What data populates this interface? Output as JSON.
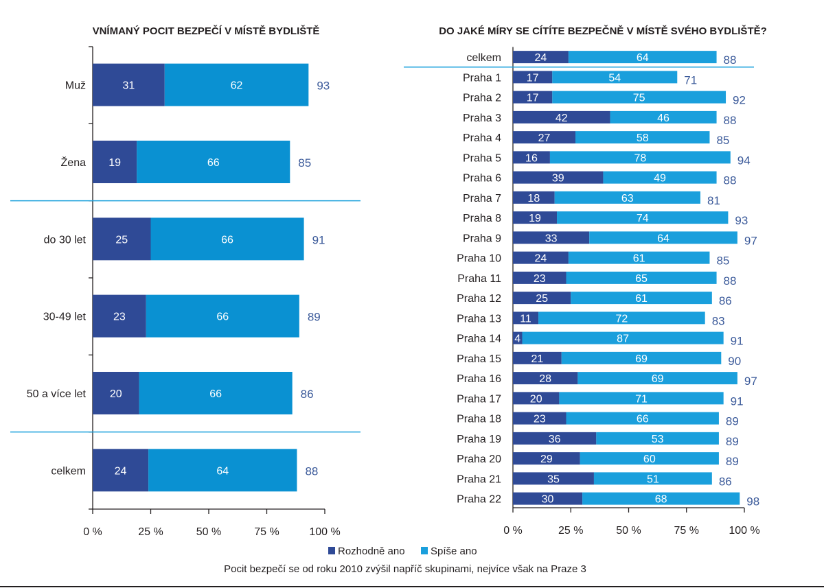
{
  "colors": {
    "rozhodne": "#2f4a96",
    "spise": "#0a91d2",
    "spise_right": "#1a9fdc",
    "total": "#3b5a9a",
    "separator": "#1aa0dc"
  },
  "chart_data": [
    {
      "type": "bar",
      "orientation": "horizontal",
      "stacked": true,
      "title": "VNÍMANÝ POCIT BEZPEČÍ V MÍSTĚ BYDLIŠTĚ",
      "categories": [
        "Muž",
        "Žena",
        "do 30 let",
        "30-49 let",
        "50 a více let",
        "celkem"
      ],
      "series": [
        {
          "name": "Rozhodně ano",
          "values": [
            31,
            19,
            25,
            23,
            20,
            24
          ]
        },
        {
          "name": "Spíše ano",
          "values": [
            62,
            66,
            66,
            66,
            66,
            64
          ]
        }
      ],
      "totals": [
        93,
        85,
        91,
        89,
        86,
        88
      ],
      "group_separators_after": [
        1,
        4
      ],
      "xlim": [
        0,
        100
      ],
      "xticks": [
        "0 %",
        "25 %",
        "50 %",
        "75 %",
        "100 %"
      ]
    },
    {
      "type": "bar",
      "orientation": "horizontal",
      "stacked": true,
      "title": "DO JAKÉ MÍRY SE CÍTÍTE BEZPEČNĚ V MÍSTĚ SVÉHO BYDLIŠTĚ?",
      "categories": [
        "celkem",
        "Praha 1",
        "Praha 2",
        "Praha 3",
        "Praha 4",
        "Praha 5",
        "Praha 6",
        "Praha 7",
        "Praha 8",
        "Praha 9",
        "Praha 10",
        "Praha 11",
        "Praha 12",
        "Praha 13",
        "Praha 14",
        "Praha 15",
        "Praha 16",
        "Praha 17",
        "Praha 18",
        "Praha 19",
        "Praha 20",
        "Praha 21",
        "Praha 22"
      ],
      "series": [
        {
          "name": "Rozhodně ano",
          "values": [
            24,
            17,
            17,
            42,
            27,
            16,
            39,
            18,
            19,
            33,
            24,
            23,
            25,
            11,
            4,
            21,
            28,
            20,
            23,
            36,
            29,
            35,
            30
          ]
        },
        {
          "name": "Spíše ano",
          "values": [
            64,
            54,
            75,
            46,
            58,
            78,
            49,
            63,
            74,
            64,
            61,
            65,
            61,
            72,
            87,
            69,
            69,
            71,
            66,
            53,
            60,
            51,
            68
          ]
        }
      ],
      "totals": [
        88,
        71,
        92,
        88,
        85,
        94,
        88,
        81,
        93,
        97,
        85,
        88,
        86,
        83,
        91,
        90,
        97,
        91,
        89,
        89,
        89,
        86,
        98
      ],
      "group_separators_after": [
        0
      ],
      "xlim": [
        0,
        100
      ],
      "xticks": [
        "0 %",
        "25 %",
        "50 %",
        "75 %",
        "100 %"
      ]
    }
  ],
  "legend": {
    "items": [
      "Rozhodně ano",
      "Spíše ano"
    ]
  },
  "caption": "Pocit bezpečí se od roku 2010 zvýšil napříč skupinami, nejvíce však na Praze 3"
}
